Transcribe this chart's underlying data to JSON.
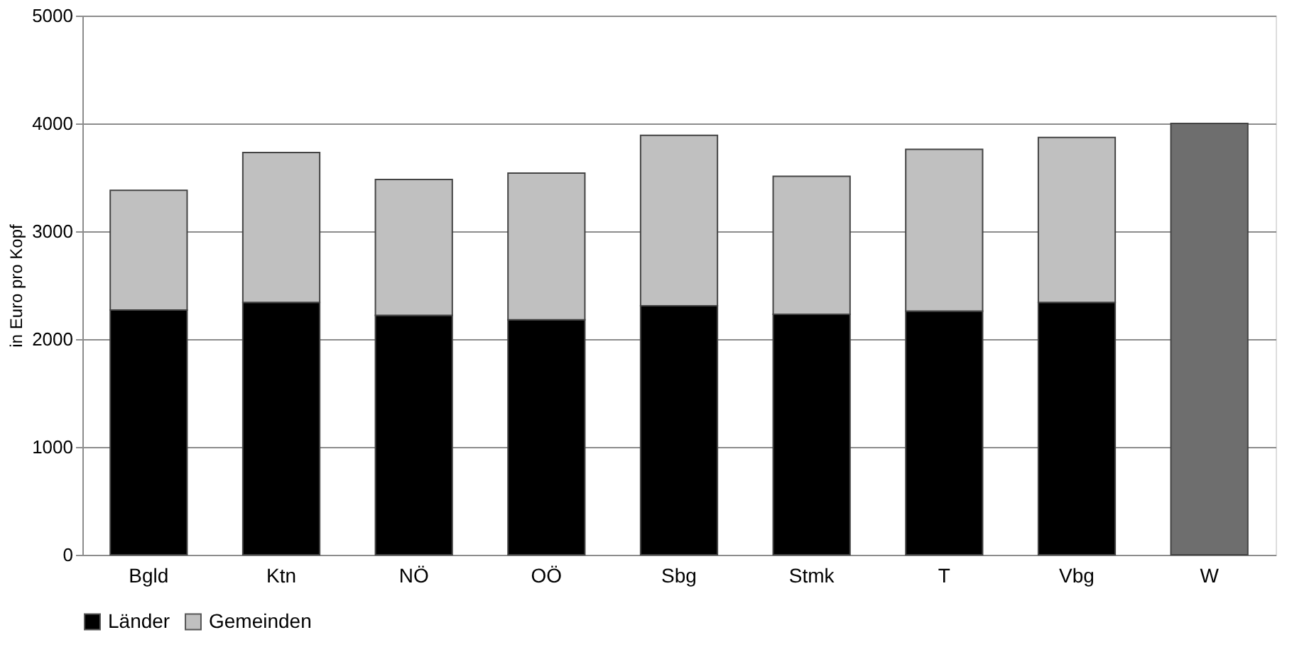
{
  "chart_data": {
    "type": "bar",
    "stacked": true,
    "ylabel": "in Euro pro Kopf",
    "categories": [
      "Bgld",
      "Ktn",
      "NÖ",
      "OÖ",
      "Sbg",
      "Stmk",
      "T",
      "Vbg",
      "W"
    ],
    "series": [
      {
        "name": "Länder",
        "color": "#000000",
        "values": [
          2270,
          2340,
          2220,
          2180,
          2310,
          2230,
          2260,
          2340,
          null
        ]
      },
      {
        "name": "Gemeinden",
        "color": "#c0c0c0",
        "values": [
          1110,
          1390,
          1260,
          1360,
          1580,
          1280,
          1500,
          1530,
          null
        ]
      },
      {
        "color": "#6e6e6e",
        "values": [
          null,
          null,
          null,
          null,
          null,
          null,
          null,
          null,
          4000
        ]
      }
    ],
    "ylim": [
      0,
      5000
    ],
    "yticks": [
      0,
      1000,
      2000,
      3000,
      4000,
      5000
    ],
    "grid": "y",
    "legend": "bottom"
  }
}
